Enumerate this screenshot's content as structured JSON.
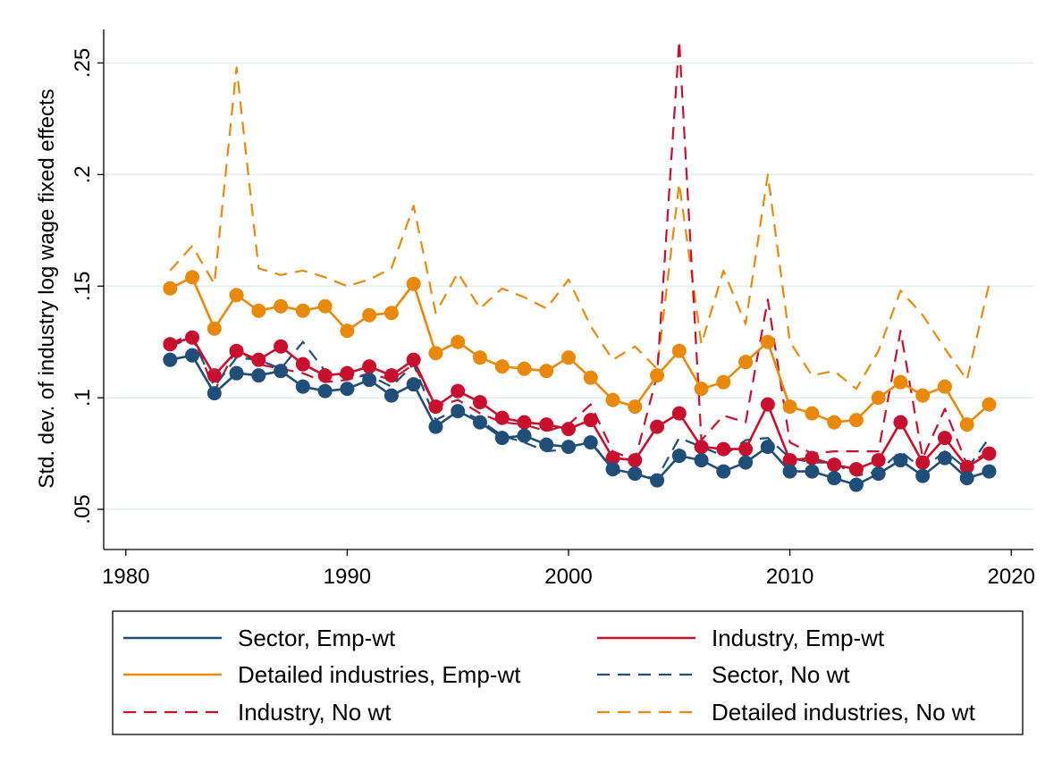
{
  "chart_data": {
    "type": "line",
    "title": "",
    "xlabel": "",
    "ylabel": "Std. dev. of industry log wage fixed effects",
    "xlim": [
      1979,
      2021
    ],
    "ylim": [
      0.032,
      0.265
    ],
    "xticks": [
      1980,
      1990,
      2000,
      2010,
      2020
    ],
    "xtick_labels": [
      "1980",
      "1990",
      "2000",
      "2010",
      "2020"
    ],
    "yticks": [
      0.05,
      0.1,
      0.15,
      0.2,
      0.25
    ],
    "ytick_labels": [
      ".05",
      ".1",
      ".15",
      ".2",
      ".25"
    ],
    "grid": "horizontal",
    "legend_position": "bottom",
    "x": [
      1982,
      1983,
      1984,
      1985,
      1986,
      1987,
      1988,
      1989,
      1990,
      1991,
      1992,
      1993,
      1994,
      1995,
      1996,
      1997,
      1998,
      1999,
      2000,
      2001,
      2002,
      2003,
      2004,
      2005,
      2006,
      2007,
      2008,
      2009,
      2010,
      2011,
      2012,
      2013,
      2014,
      2015,
      2016,
      2017,
      2018,
      2019
    ],
    "series": [
      {
        "name": "Sector, Emp-wt",
        "color": "#1f4e79",
        "style": "solid",
        "markers": true,
        "values": [
          0.117,
          0.119,
          0.102,
          0.111,
          0.11,
          0.112,
          0.105,
          0.103,
          0.104,
          0.108,
          0.101,
          0.106,
          0.087,
          0.094,
          0.089,
          0.082,
          0.083,
          0.079,
          0.078,
          0.08,
          0.068,
          0.066,
          0.063,
          0.074,
          0.072,
          0.067,
          0.071,
          0.078,
          0.067,
          0.067,
          0.064,
          0.061,
          0.066,
          0.072,
          0.065,
          0.073,
          0.064,
          0.067
        ]
      },
      {
        "name": "Industry, Emp-wt",
        "color": "#c8102e",
        "style": "solid",
        "markers": true,
        "values": [
          0.124,
          0.127,
          0.11,
          0.121,
          0.117,
          0.123,
          0.115,
          0.11,
          0.111,
          0.114,
          0.11,
          0.117,
          0.096,
          0.103,
          0.098,
          0.091,
          0.089,
          0.088,
          0.086,
          0.09,
          0.073,
          0.072,
          0.087,
          0.093,
          0.078,
          0.077,
          0.077,
          0.097,
          0.072,
          0.073,
          0.07,
          0.068,
          0.072,
          0.089,
          0.071,
          0.082,
          0.069,
          0.075
        ]
      },
      {
        "name": "Detailed industries, Emp-wt",
        "color": "#e8890c",
        "style": "solid",
        "markers": true,
        "values": [
          0.149,
          0.154,
          0.131,
          0.146,
          0.139,
          0.141,
          0.139,
          0.141,
          0.13,
          0.137,
          0.138,
          0.151,
          0.12,
          0.125,
          0.118,
          0.114,
          0.113,
          0.112,
          0.118,
          0.109,
          0.099,
          0.096,
          0.11,
          0.121,
          0.104,
          0.107,
          0.116,
          0.125,
          0.096,
          0.093,
          0.089,
          0.09,
          0.1,
          0.107,
          0.101,
          0.105,
          0.088,
          0.097
        ]
      },
      {
        "name": "Sector, No wt",
        "color": "#1f4e79",
        "style": "dashed",
        "markers": false,
        "values": [
          0.123,
          0.127,
          0.105,
          0.118,
          0.117,
          0.113,
          0.125,
          0.112,
          0.109,
          0.11,
          0.105,
          0.115,
          0.09,
          0.095,
          0.09,
          0.083,
          0.08,
          0.076,
          0.077,
          0.081,
          0.067,
          0.065,
          0.064,
          0.082,
          0.078,
          0.074,
          0.081,
          0.082,
          0.073,
          0.071,
          0.071,
          0.065,
          0.067,
          0.076,
          0.068,
          0.076,
          0.068,
          0.082
        ]
      },
      {
        "name": "Industry, No wt",
        "color": "#c8102e",
        "style": "dashed",
        "markers": false,
        "values": [
          0.124,
          0.129,
          0.103,
          0.122,
          0.115,
          0.113,
          0.111,
          0.107,
          0.108,
          0.111,
          0.108,
          0.115,
          0.096,
          0.099,
          0.093,
          0.089,
          0.088,
          0.085,
          0.088,
          0.097,
          0.076,
          0.072,
          0.11,
          0.26,
          0.081,
          0.092,
          0.089,
          0.144,
          0.08,
          0.075,
          0.076,
          0.076,
          0.076,
          0.13,
          0.073,
          0.095,
          0.07,
          0.076
        ]
      },
      {
        "name": "Detailed industries, No wt",
        "color": "#e8890c",
        "style": "dashed",
        "markers": false,
        "values": [
          0.157,
          0.168,
          0.151,
          0.248,
          0.158,
          0.155,
          0.157,
          0.154,
          0.15,
          0.153,
          0.158,
          0.186,
          0.138,
          0.156,
          0.14,
          0.149,
          0.145,
          0.14,
          0.153,
          0.132,
          0.117,
          0.123,
          0.113,
          0.196,
          0.124,
          0.157,
          0.133,
          0.2,
          0.125,
          0.11,
          0.112,
          0.104,
          0.121,
          0.148,
          0.137,
          0.122,
          0.108,
          0.151
        ]
      }
    ]
  }
}
